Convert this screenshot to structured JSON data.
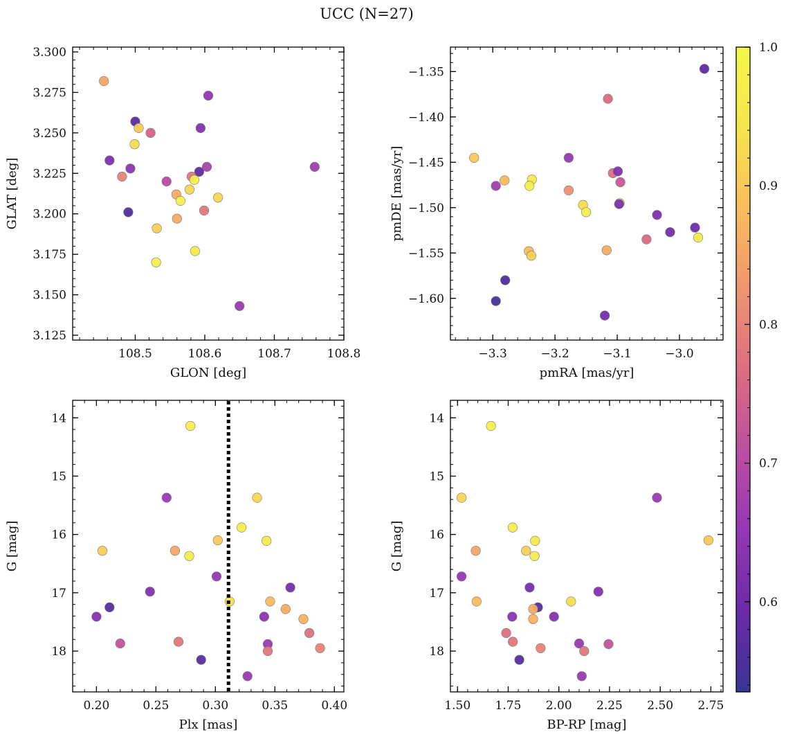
{
  "figure_title": "UCC (N=27)",
  "colorbar": {
    "min": 0.535,
    "max": 1.0,
    "ticks": [
      0.6,
      0.7,
      0.8,
      0.9,
      1.0
    ],
    "tick_labels": [
      "0.6",
      "0.7",
      "0.8",
      "0.9",
      "1.0"
    ],
    "colormap": "plasma",
    "cmap_stops": [
      "#3a3493",
      "#6a2aa8",
      "#9437b5",
      "#bd4ea0",
      "#dc6e80",
      "#f09470",
      "#f8bd5c",
      "#f6e54d",
      "#f5f54a"
    ]
  },
  "chart_data": [
    {
      "type": "scatter",
      "xlabel": "GLON [deg]",
      "ylabel": "GLAT [deg]",
      "xlim": [
        108.41,
        108.8
      ],
      "ylim": [
        3.122,
        3.303
      ],
      "y_inverted": false,
      "x_ticks": [
        108.5,
        108.6,
        108.7,
        108.8
      ],
      "x_tick_labels": [
        "108.5",
        "108.6",
        "108.7",
        "108.8"
      ],
      "y_ticks": [
        3.125,
        3.15,
        3.175,
        3.2,
        3.225,
        3.25,
        3.275,
        3.3
      ],
      "y_tick_labels": [
        "3.125",
        "3.150",
        "3.175",
        "3.200",
        "3.225",
        "3.250",
        "3.275",
        "3.300"
      ],
      "x_minor_step": 0.02,
      "y_minor_step": 0.005,
      "vline": null,
      "points": [
        {
          "x": 108.455,
          "y": 3.282,
          "c": 0.85
        },
        {
          "x": 108.605,
          "y": 3.273,
          "c": 0.65
        },
        {
          "x": 108.5,
          "y": 3.257,
          "c": 0.57
        },
        {
          "x": 108.505,
          "y": 3.253,
          "c": 0.9
        },
        {
          "x": 108.522,
          "y": 3.25,
          "c": 0.75
        },
        {
          "x": 108.594,
          "y": 3.253,
          "c": 0.63
        },
        {
          "x": 108.499,
          "y": 3.243,
          "c": 0.93
        },
        {
          "x": 108.463,
          "y": 3.233,
          "c": 0.62
        },
        {
          "x": 108.493,
          "y": 3.228,
          "c": 0.64
        },
        {
          "x": 108.603,
          "y": 3.229,
          "c": 0.68
        },
        {
          "x": 108.758,
          "y": 3.229,
          "c": 0.67
        },
        {
          "x": 108.592,
          "y": 3.226,
          "c": 0.58
        },
        {
          "x": 108.481,
          "y": 3.223,
          "c": 0.8
        },
        {
          "x": 108.581,
          "y": 3.223,
          "c": 0.78
        },
        {
          "x": 108.585,
          "y": 3.221,
          "c": 0.98
        },
        {
          "x": 108.545,
          "y": 3.22,
          "c": 0.7
        },
        {
          "x": 108.578,
          "y": 3.215,
          "c": 0.92
        },
        {
          "x": 108.559,
          "y": 3.212,
          "c": 0.86
        },
        {
          "x": 108.619,
          "y": 3.21,
          "c": 0.92
        },
        {
          "x": 108.565,
          "y": 3.208,
          "c": 0.97
        },
        {
          "x": 108.599,
          "y": 3.202,
          "c": 0.78
        },
        {
          "x": 108.49,
          "y": 3.201,
          "c": 0.56
        },
        {
          "x": 108.56,
          "y": 3.197,
          "c": 0.86
        },
        {
          "x": 108.531,
          "y": 3.191,
          "c": 0.91
        },
        {
          "x": 108.586,
          "y": 3.177,
          "c": 0.96
        },
        {
          "x": 108.53,
          "y": 3.17,
          "c": 0.97
        },
        {
          "x": 108.65,
          "y": 3.143,
          "c": 0.66
        }
      ]
    },
    {
      "type": "scatter",
      "xlabel": "pmRA [mas/yr]",
      "ylabel": "pmDE [mas/yr]",
      "xlim": [
        -3.368,
        -2.93
      ],
      "ylim": [
        -1.646,
        -1.323
      ],
      "y_inverted": false,
      "x_ticks": [
        -3.3,
        -3.2,
        -3.1,
        -3.0
      ],
      "x_tick_labels": [
        "−3.3",
        "−3.2",
        "−3.1",
        "−3.0"
      ],
      "y_ticks": [
        -1.6,
        -1.55,
        -1.5,
        -1.45,
        -1.4,
        -1.35
      ],
      "y_tick_labels": [
        "−1.60",
        "−1.55",
        "−1.50",
        "−1.45",
        "−1.40",
        "−1.35"
      ],
      "x_minor_step": 0.02,
      "y_minor_step": 0.01,
      "vline": null,
      "points": [
        {
          "x": -2.96,
          "y": -1.347,
          "c": 0.58
        },
        {
          "x": -3.115,
          "y": -1.38,
          "c": 0.76
        },
        {
          "x": -3.33,
          "y": -1.445,
          "c": 0.9
        },
        {
          "x": -3.178,
          "y": -1.445,
          "c": 0.66
        },
        {
          "x": -3.107,
          "y": -1.462,
          "c": 0.77
        },
        {
          "x": -3.099,
          "y": -1.46,
          "c": 0.63
        },
        {
          "x": -3.095,
          "y": -1.472,
          "c": 0.73
        },
        {
          "x": -3.281,
          "y": -1.47,
          "c": 0.88
        },
        {
          "x": -3.237,
          "y": -1.469,
          "c": 0.96
        },
        {
          "x": -3.295,
          "y": -1.476,
          "c": 0.67
        },
        {
          "x": -3.241,
          "y": -1.476,
          "c": 0.97
        },
        {
          "x": -3.178,
          "y": -1.481,
          "c": 0.82
        },
        {
          "x": -3.155,
          "y": -1.497,
          "c": 0.93
        },
        {
          "x": -3.096,
          "y": -1.495,
          "c": 0.93
        },
        {
          "x": -3.097,
          "y": -1.496,
          "c": 0.62
        },
        {
          "x": -3.15,
          "y": -1.505,
          "c": 0.97
        },
        {
          "x": -3.036,
          "y": -1.508,
          "c": 0.62
        },
        {
          "x": -2.975,
          "y": -1.522,
          "c": 0.6
        },
        {
          "x": -3.015,
          "y": -1.527,
          "c": 0.61
        },
        {
          "x": -2.97,
          "y": -1.533,
          "c": 0.96
        },
        {
          "x": -3.053,
          "y": -1.535,
          "c": 0.76
        },
        {
          "x": -3.242,
          "y": -1.548,
          "c": 0.88
        },
        {
          "x": -3.117,
          "y": -1.547,
          "c": 0.86
        },
        {
          "x": -3.238,
          "y": -1.553,
          "c": 0.91
        },
        {
          "x": -3.28,
          "y": -1.58,
          "c": 0.56
        },
        {
          "x": -3.295,
          "y": -1.603,
          "c": 0.55
        },
        {
          "x": -3.12,
          "y": -1.619,
          "c": 0.61
        }
      ]
    },
    {
      "type": "scatter",
      "xlabel": "Plx [mas]",
      "ylabel": "G [mag]",
      "xlim": [
        0.18,
        0.408
      ],
      "ylim": [
        13.7,
        18.7
      ],
      "y_inverted": true,
      "x_ticks": [
        0.2,
        0.25,
        0.3,
        0.35,
        0.4
      ],
      "x_tick_labels": [
        "0.20",
        "0.25",
        "0.30",
        "0.35",
        "0.40"
      ],
      "y_ticks": [
        14,
        15,
        16,
        17,
        18
      ],
      "y_tick_labels": [
        "14",
        "15",
        "16",
        "17",
        "18"
      ],
      "x_minor_step": 0.01,
      "y_minor_step": 0.2,
      "vline": {
        "x": 0.311,
        "style": "dotted"
      },
      "points": [
        {
          "x": 0.279,
          "y": 14.14,
          "c": 0.97
        },
        {
          "x": 0.259,
          "y": 15.37,
          "c": 0.66
        },
        {
          "x": 0.335,
          "y": 15.37,
          "c": 0.92
        },
        {
          "x": 0.322,
          "y": 15.88,
          "c": 0.97
        },
        {
          "x": 0.302,
          "y": 16.1,
          "c": 0.9
        },
        {
          "x": 0.343,
          "y": 16.11,
          "c": 0.96
        },
        {
          "x": 0.205,
          "y": 16.28,
          "c": 0.91
        },
        {
          "x": 0.266,
          "y": 16.28,
          "c": 0.85
        },
        {
          "x": 0.278,
          "y": 16.37,
          "c": 0.97
        },
        {
          "x": 0.301,
          "y": 16.72,
          "c": 0.65
        },
        {
          "x": 0.363,
          "y": 16.91,
          "c": 0.61
        },
        {
          "x": 0.245,
          "y": 16.98,
          "c": 0.63
        },
        {
          "x": 0.312,
          "y": 17.15,
          "c": 0.93
        },
        {
          "x": 0.346,
          "y": 17.15,
          "c": 0.88
        },
        {
          "x": 0.211,
          "y": 17.25,
          "c": 0.57
        },
        {
          "x": 0.359,
          "y": 17.28,
          "c": 0.86
        },
        {
          "x": 0.2,
          "y": 17.41,
          "c": 0.63
        },
        {
          "x": 0.341,
          "y": 17.41,
          "c": 0.64
        },
        {
          "x": 0.374,
          "y": 17.45,
          "c": 0.87
        },
        {
          "x": 0.379,
          "y": 17.69,
          "c": 0.77
        },
        {
          "x": 0.269,
          "y": 17.84,
          "c": 0.78
        },
        {
          "x": 0.22,
          "y": 17.87,
          "c": 0.72
        },
        {
          "x": 0.344,
          "y": 17.88,
          "c": 0.66
        },
        {
          "x": 0.388,
          "y": 17.95,
          "c": 0.8
        },
        {
          "x": 0.344,
          "y": 18.0,
          "c": 0.78
        },
        {
          "x": 0.288,
          "y": 18.15,
          "c": 0.57
        },
        {
          "x": 0.327,
          "y": 18.43,
          "c": 0.66
        }
      ]
    },
    {
      "type": "scatter",
      "xlabel": "BP-RP [mag]",
      "ylabel": "G [mag]",
      "xlim": [
        1.465,
        2.81
      ],
      "ylim": [
        13.7,
        18.7
      ],
      "y_inverted": true,
      "x_ticks": [
        1.5,
        1.75,
        2.0,
        2.25,
        2.5,
        2.75
      ],
      "x_tick_labels": [
        "1.50",
        "1.75",
        "2.00",
        "2.25",
        "2.50",
        "2.75"
      ],
      "y_ticks": [
        14,
        15,
        16,
        17,
        18
      ],
      "y_tick_labels": [
        "14",
        "15",
        "16",
        "17",
        "18"
      ],
      "x_minor_step": 0.05,
      "y_minor_step": 0.2,
      "vline": null,
      "points": [
        {
          "x": 1.665,
          "y": 14.14,
          "c": 0.97
        },
        {
          "x": 1.52,
          "y": 15.37,
          "c": 0.92
        },
        {
          "x": 2.484,
          "y": 15.37,
          "c": 0.66
        },
        {
          "x": 1.772,
          "y": 15.88,
          "c": 0.97
        },
        {
          "x": 1.883,
          "y": 16.11,
          "c": 0.96
        },
        {
          "x": 2.738,
          "y": 16.1,
          "c": 0.9
        },
        {
          "x": 1.59,
          "y": 16.28,
          "c": 0.85
        },
        {
          "x": 1.838,
          "y": 16.28,
          "c": 0.91
        },
        {
          "x": 1.88,
          "y": 16.37,
          "c": 0.97
        },
        {
          "x": 1.52,
          "y": 16.72,
          "c": 0.65
        },
        {
          "x": 1.856,
          "y": 16.91,
          "c": 0.61
        },
        {
          "x": 2.195,
          "y": 16.98,
          "c": 0.63
        },
        {
          "x": 1.594,
          "y": 17.15,
          "c": 0.88
        },
        {
          "x": 2.06,
          "y": 17.15,
          "c": 0.93
        },
        {
          "x": 1.897,
          "y": 17.25,
          "c": 0.57
        },
        {
          "x": 1.873,
          "y": 17.28,
          "c": 0.86
        },
        {
          "x": 1.77,
          "y": 17.41,
          "c": 0.64
        },
        {
          "x": 1.976,
          "y": 17.41,
          "c": 0.63
        },
        {
          "x": 1.873,
          "y": 17.45,
          "c": 0.87
        },
        {
          "x": 1.74,
          "y": 17.69,
          "c": 0.77
        },
        {
          "x": 1.773,
          "y": 17.84,
          "c": 0.78
        },
        {
          "x": 2.1,
          "y": 17.87,
          "c": 0.66
        },
        {
          "x": 2.245,
          "y": 17.88,
          "c": 0.72
        },
        {
          "x": 1.91,
          "y": 17.95,
          "c": 0.8
        },
        {
          "x": 2.125,
          "y": 18.0,
          "c": 0.78
        },
        {
          "x": 1.805,
          "y": 18.15,
          "c": 0.57
        },
        {
          "x": 2.113,
          "y": 18.43,
          "c": 0.66
        }
      ]
    }
  ]
}
